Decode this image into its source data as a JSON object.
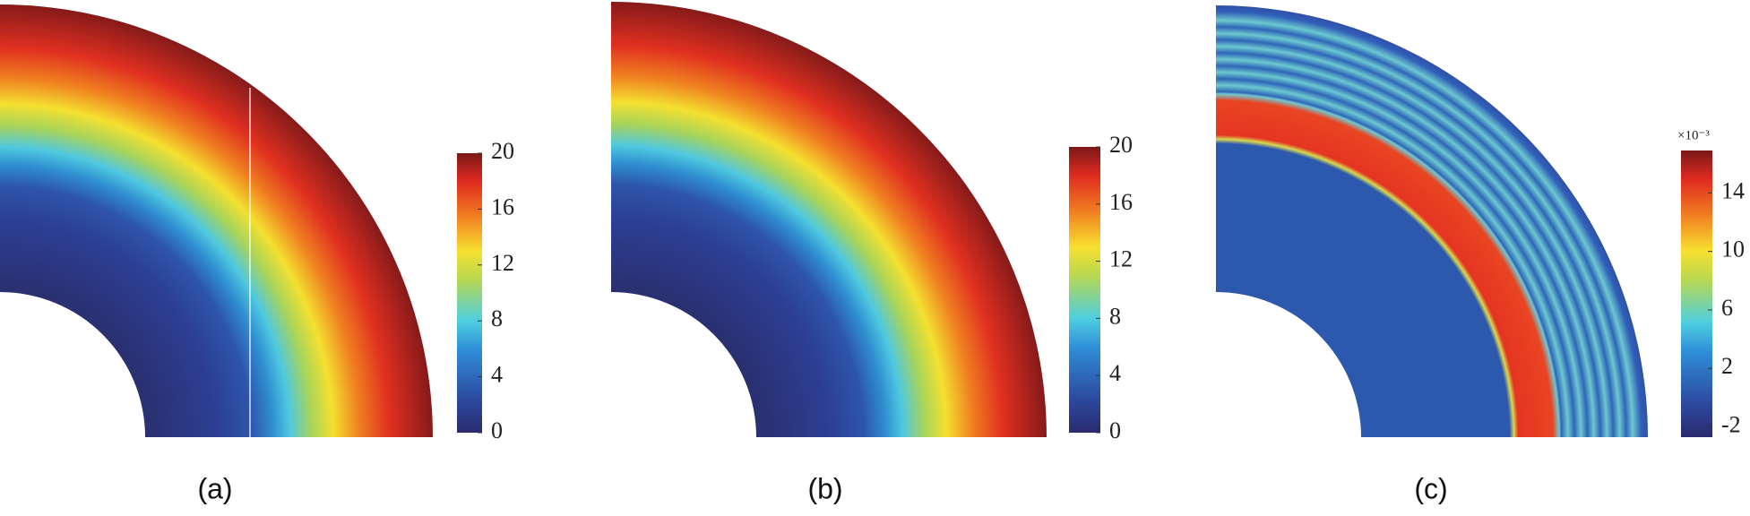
{
  "panels": [
    {
      "label": "(a)",
      "colorbar": {
        "lim": [
          0,
          20
        ],
        "ticks": [
          0,
          4,
          8,
          12,
          16,
          20
        ]
      }
    },
    {
      "label": "(b)",
      "colorbar": {
        "lim": [
          0,
          20
        ],
        "ticks": [
          0,
          4,
          8,
          12,
          16,
          20
        ]
      }
    },
    {
      "label": "(c)",
      "colorbar": {
        "lim": [
          -2.7,
          16.9
        ],
        "ticks": [
          -2,
          2,
          6,
          10,
          14
        ],
        "multiplier": "×10⁻³"
      }
    }
  ]
}
